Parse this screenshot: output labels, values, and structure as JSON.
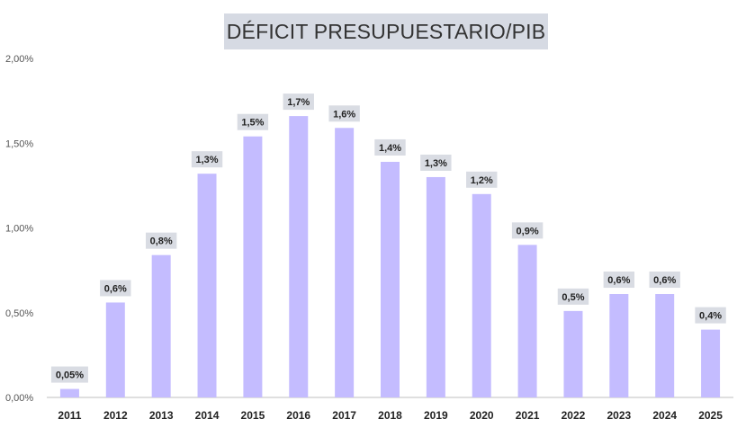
{
  "chart_data": {
    "type": "bar",
    "title": "DÉFICIT PRESUPUESTARIO/PIB",
    "xlabel": "",
    "ylabel": "",
    "categories": [
      "2011",
      "2012",
      "2013",
      "2014",
      "2015",
      "2016",
      "2017",
      "2018",
      "2019",
      "2020",
      "2021",
      "2022",
      "2023",
      "2024",
      "2025"
    ],
    "values": [
      0.05,
      0.56,
      0.84,
      1.32,
      1.54,
      1.66,
      1.59,
      1.39,
      1.3,
      1.2,
      0.9,
      0.51,
      0.61,
      0.61,
      0.4
    ],
    "data_labels": [
      "0,05%",
      "0,6%",
      "0,8%",
      "1,3%",
      "1,5%",
      "1,7%",
      "1,6%",
      "1,4%",
      "1,3%",
      "1,2%",
      "0,9%",
      "0,5%",
      "0,6%",
      "0,6%",
      "0,4%"
    ],
    "ylim": [
      0,
      2.0
    ],
    "yticks": [
      0,
      0.5,
      1.0,
      1.5,
      2.0
    ],
    "ytick_labels": [
      "0,00%",
      "0,50%",
      "1,00%",
      "1,50%",
      "2,00%"
    ],
    "grid": false,
    "legend": "none",
    "colors": {
      "bar": "#c4bcff",
      "label_bg": "#d9dce3",
      "title_bg": "#d6dae3",
      "axis": "#bfbfbf"
    }
  }
}
